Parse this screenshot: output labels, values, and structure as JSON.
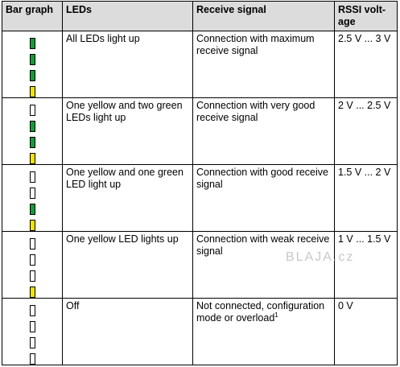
{
  "headers": {
    "bar_graph": "Bar graph",
    "leds": "LEDs",
    "receive_signal": "Receive signal",
    "rssi": "RSSI volt-age"
  },
  "rows": [
    {
      "bars": [
        "green",
        "green",
        "green",
        "yellow"
      ],
      "leds": "All LEDs light up",
      "signal": "Connection with maximum receive signal",
      "signal_sup": "",
      "rssi": "2.5 V ... 3 V"
    },
    {
      "bars": [
        "off",
        "green",
        "green",
        "yellow"
      ],
      "leds": "One yellow and two green LEDs light up",
      "signal": "Connection with very good receive signal",
      "signal_sup": "",
      "rssi": "2 V ... 2.5 V"
    },
    {
      "bars": [
        "off",
        "off",
        "green",
        "yellow"
      ],
      "leds": "One yellow and one green LED light up",
      "signal": "Connection with good receive signal",
      "signal_sup": "",
      "rssi": "1.5 V ... 2 V"
    },
    {
      "bars": [
        "off",
        "off",
        "off",
        "yellow"
      ],
      "leds": "One yellow LED lights up",
      "signal": "Connection with weak receive signal",
      "signal_sup": "",
      "rssi": "1 V ... 1.5 V"
    },
    {
      "bars": [
        "off",
        "off",
        "off",
        "off"
      ],
      "leds": "Off",
      "signal": "Not connected, configuration mode or overload",
      "signal_sup": "1",
      "rssi": "0 V"
    }
  ],
  "watermark": "BLAJA.cz",
  "colors": {
    "green": "#169b3a",
    "yellow": "#f2e400",
    "off": "#ffffff",
    "header_bg": "#dcdcdc"
  }
}
